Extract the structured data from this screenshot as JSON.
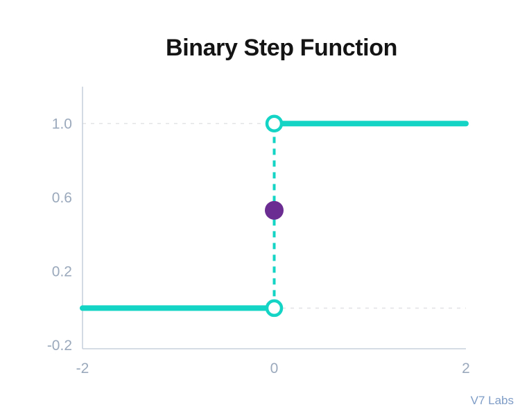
{
  "branding": {
    "watermark": "V7 Labs"
  },
  "colors": {
    "accent_teal": "#13d4c5",
    "accent_purple": "#6b2d91",
    "axis_spine": "#c8d1dc",
    "grid": "#e3e4e6",
    "tick_label": "#9ba9bc",
    "title": "#141414",
    "watermark": "#7e9cc6",
    "point_fill": "#ffffff",
    "background": "#ffffff"
  },
  "chart_data": {
    "type": "line",
    "title": "Binary Step Function",
    "xlabel": "",
    "ylabel": "",
    "xlim": [
      -2,
      2
    ],
    "ylim": [
      -0.22,
      1.2
    ],
    "grid": "dashed-horizontal-at-function-values",
    "legend": null,
    "x_ticks": [
      {
        "value": -2,
        "label": "-2"
      },
      {
        "value": 0,
        "label": "0"
      },
      {
        "value": 2,
        "label": "2"
      }
    ],
    "y_ticks": [
      {
        "value": 1.0,
        "label": "1.0"
      },
      {
        "value": 0.6,
        "label": "0.6"
      },
      {
        "value": 0.2,
        "label": "0.2"
      },
      {
        "value": -0.2,
        "label": "-0.2"
      }
    ],
    "gridlines_y": [
      1.0,
      0.0
    ],
    "segments": [
      {
        "from": [
          -2,
          0
        ],
        "to": [
          0,
          0
        ]
      },
      {
        "from": [
          0,
          1
        ],
        "to": [
          2,
          1
        ]
      }
    ],
    "discontinuity": {
      "x": 0,
      "y1": 0,
      "y2": 1
    },
    "open_points": [
      [
        0,
        0
      ],
      [
        0,
        1
      ]
    ],
    "highlight_point": [
      0,
      0.53
    ]
  }
}
